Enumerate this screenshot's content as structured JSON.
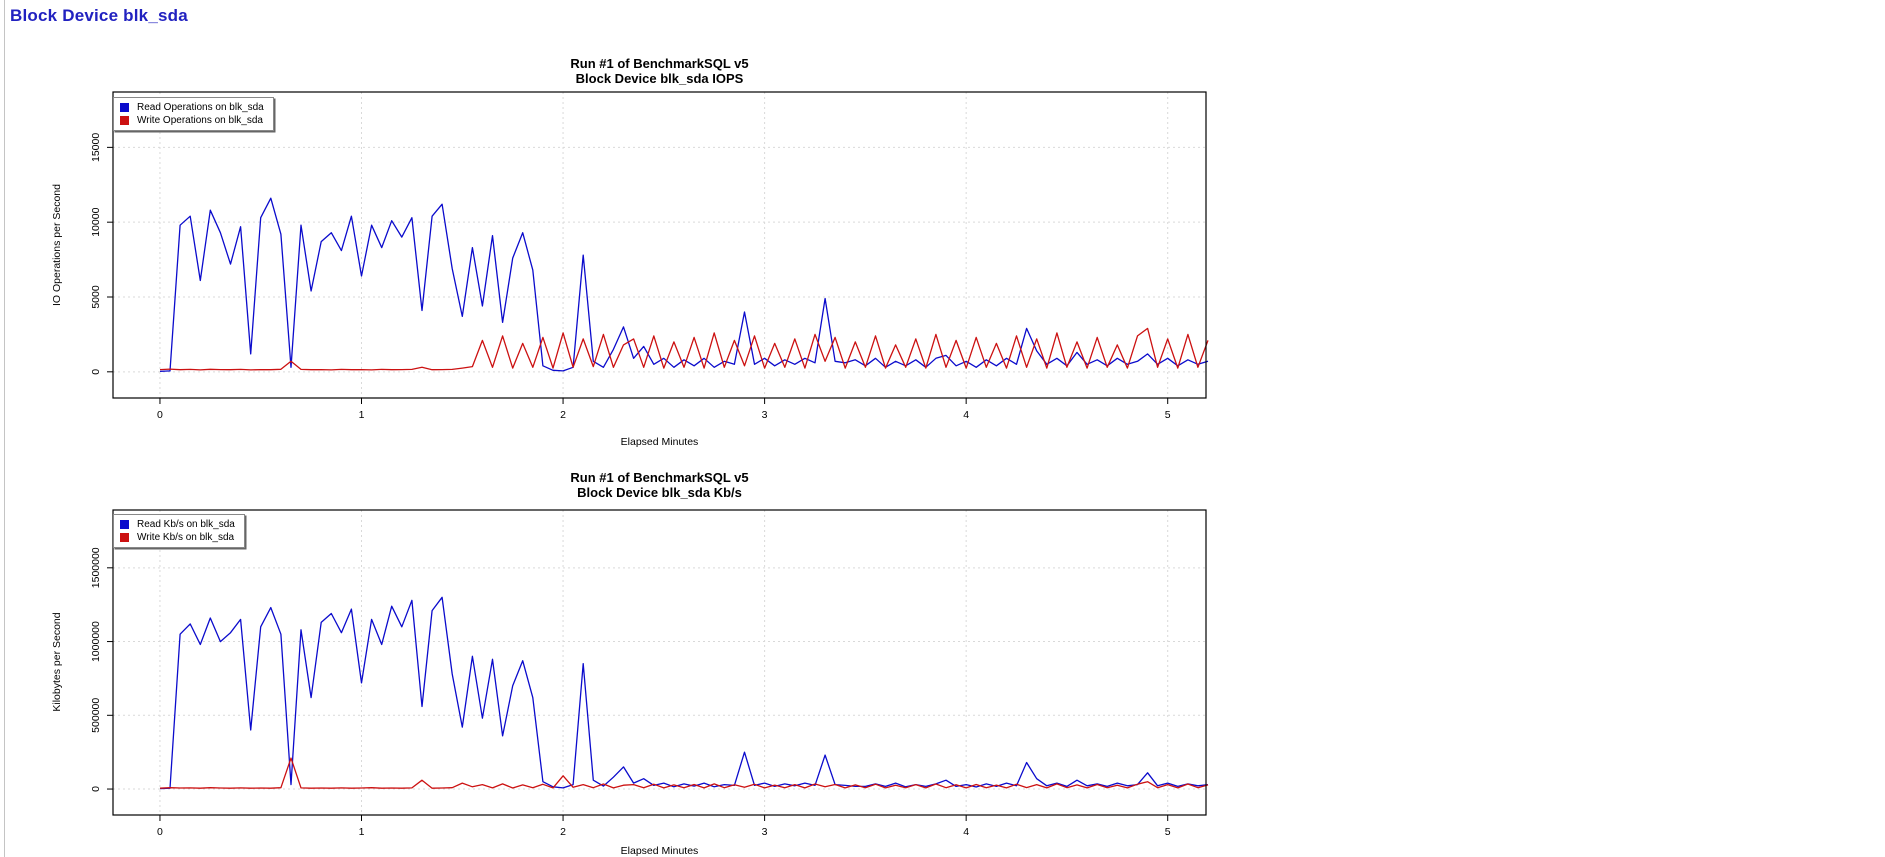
{
  "page": {
    "heading": "Block Device blk_sda"
  },
  "colors": {
    "read": "#0b0bcc",
    "write": "#cc1111",
    "grid": "#d9d9d9",
    "axis": "#000000",
    "heading": "#2121c0"
  },
  "chart_data": [
    {
      "type": "line",
      "title_line1": "Run #1 of BenchmarkSQL v5",
      "title_line2": "Block Device blk_sda IOPS",
      "xlabel": "Elapsed Minutes",
      "ylabel": "IO Operations per Second",
      "x_ticks": [
        0,
        1,
        2,
        3,
        4,
        5
      ],
      "y_ticks": [
        0,
        5000,
        10000,
        15000
      ],
      "xlim": [
        -0.233,
        5.19
      ],
      "ylim": [
        -1750,
        18700
      ],
      "grid": true,
      "legend_position": "top-left",
      "x_start": 0,
      "x_step": 0.05,
      "series": [
        {
          "name": "Read Operations on blk_sda",
          "color": "#0b0bcc",
          "values": [
            30,
            60,
            9800,
            10400,
            6100,
            10800,
            9300,
            7200,
            9700,
            1200,
            10300,
            11600,
            9200,
            300,
            9800,
            5400,
            8700,
            9300,
            8100,
            10400,
            6400,
            9800,
            8300,
            10100,
            9000,
            10300,
            4100,
            10400,
            11200,
            6900,
            3700,
            8300,
            4400,
            9100,
            3300,
            7600,
            9300,
            6800,
            400,
            100,
            60,
            300,
            7800,
            700,
            300,
            1500,
            3000,
            900,
            1700,
            500,
            900,
            300,
            800,
            400,
            900,
            300,
            700,
            500,
            4000,
            500,
            900,
            400,
            800,
            500,
            900,
            600,
            4900,
            700,
            600,
            800,
            400,
            900,
            300,
            700,
            400,
            800,
            300,
            900,
            1100,
            400,
            700,
            300,
            800,
            400,
            900,
            500,
            2900,
            1400,
            500,
            900,
            400,
            1300,
            500,
            800,
            400,
            900,
            500,
            700,
            1200,
            500,
            900,
            400,
            800,
            500,
            700
          ]
        },
        {
          "name": "Write Operations on blk_sda",
          "color": "#cc1111",
          "values": [
            150,
            180,
            140,
            160,
            130,
            170,
            150,
            140,
            160,
            130,
            150,
            140,
            170,
            700,
            160,
            140,
            150,
            130,
            160,
            140,
            150,
            130,
            160,
            140,
            150,
            160,
            300,
            140,
            150,
            160,
            250,
            350,
            2100,
            300,
            2400,
            250,
            1900,
            300,
            2300,
            250,
            2600,
            300,
            2200,
            350,
            2500,
            300,
            1800,
            2200,
            300,
            2400,
            250,
            2000,
            300,
            2300,
            250,
            2600,
            300,
            2100,
            400,
            2400,
            250,
            1900,
            300,
            2200,
            250,
            2500,
            700,
            2300,
            250,
            2000,
            300,
            2400,
            250,
            1800,
            300,
            2200,
            250,
            2500,
            300,
            2100,
            250,
            2300,
            300,
            1900,
            250,
            2400,
            300,
            2200,
            250,
            2600,
            300,
            2000,
            250,
            2300,
            300,
            1800,
            250,
            2400,
            2900,
            300,
            2200,
            250,
            2500,
            300,
            2100
          ]
        }
      ]
    },
    {
      "type": "line",
      "title_line1": "Run #1 of BenchmarkSQL v5",
      "title_line2": "Block Device blk_sda Kb/s",
      "xlabel": "Elapsed Minutes",
      "ylabel": "Kilobytes per Second",
      "x_ticks": [
        0,
        1,
        2,
        3,
        4,
        5
      ],
      "y_ticks": [
        0,
        500000,
        1000000,
        1500000
      ],
      "xlim": [
        -0.233,
        5.19
      ],
      "ylim": [
        -176000,
        1892000
      ],
      "grid": true,
      "legend_position": "top-left",
      "x_start": 0,
      "x_step": 0.05,
      "series": [
        {
          "name": "Read Kb/s on blk_sda",
          "color": "#0b0bcc",
          "values": [
            3000,
            6000,
            1050000,
            1120000,
            980000,
            1160000,
            1000000,
            1060000,
            1150000,
            400000,
            1100000,
            1230000,
            1050000,
            30000,
            1080000,
            620000,
            1130000,
            1190000,
            1060000,
            1220000,
            720000,
            1150000,
            980000,
            1240000,
            1100000,
            1280000,
            560000,
            1210000,
            1300000,
            780000,
            420000,
            900000,
            480000,
            880000,
            360000,
            700000,
            870000,
            620000,
            50000,
            15000,
            8000,
            30000,
            850000,
            60000,
            20000,
            80000,
            150000,
            40000,
            70000,
            25000,
            40000,
            15000,
            35000,
            20000,
            40000,
            15000,
            30000,
            25000,
            250000,
            25000,
            40000,
            18000,
            35000,
            22000,
            40000,
            25000,
            230000,
            30000,
            25000,
            18000,
            18000,
            35000,
            18000,
            40000,
            15000,
            30000,
            18000,
            35000,
            60000,
            18000,
            30000,
            14000,
            35000,
            18000,
            40000,
            22000,
            180000,
            70000,
            22000,
            40000,
            18000,
            60000,
            22000,
            35000,
            18000,
            40000,
            22000,
            30000,
            110000,
            22000,
            40000,
            18000,
            35000,
            22000,
            30000
          ]
        },
        {
          "name": "Write Kb/s on blk_sda",
          "color": "#cc1111",
          "values": [
            6000,
            9000,
            7000,
            8000,
            6000,
            9000,
            7000,
            6000,
            8000,
            6000,
            7000,
            6000,
            9000,
            210000,
            8000,
            6000,
            7000,
            6000,
            8000,
            6000,
            7000,
            9000,
            6000,
            7000,
            6000,
            8000,
            60000,
            6000,
            7000,
            9000,
            40000,
            15000,
            30000,
            8000,
            35000,
            7000,
            28000,
            9000,
            32000,
            8000,
            90000,
            12000,
            30000,
            9000,
            34000,
            8000,
            26000,
            30000,
            9000,
            33000,
            8000,
            28000,
            9000,
            31000,
            8000,
            35000,
            9000,
            29000,
            12000,
            32000,
            8000,
            27000,
            9000,
            30000,
            8000,
            34000,
            15000,
            31000,
            8000,
            28000,
            9000,
            33000,
            8000,
            26000,
            9000,
            30000,
            8000,
            34000,
            9000,
            29000,
            8000,
            31000,
            9000,
            27000,
            8000,
            33000,
            10000,
            30000,
            8000,
            35000,
            9000,
            28000,
            8000,
            31000,
            9000,
            26000,
            8000,
            33000,
            50000,
            9000,
            30000,
            8000,
            34000,
            9000,
            28000
          ]
        }
      ]
    }
  ]
}
